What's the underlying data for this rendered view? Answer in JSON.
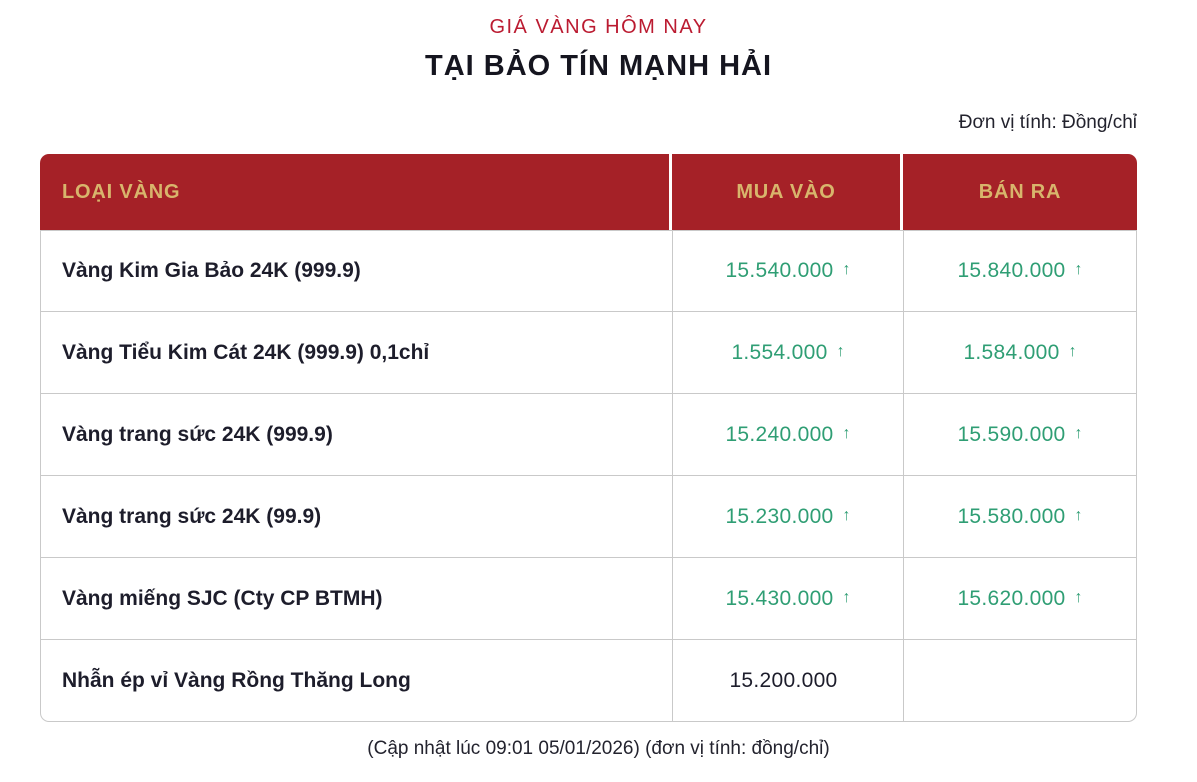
{
  "header": {
    "title": "GIÁ VÀNG HÔM NAY",
    "subtitle": "TẠI BẢO TÍN MẠNH HẢI",
    "unit_note": "Đơn vị tính: Đồng/chỉ"
  },
  "table": {
    "columns": [
      "LOẠI VÀNG",
      "MUA VÀO",
      "BÁN RA"
    ],
    "up_arrow": "↑",
    "rows": [
      {
        "type": "Vàng Kim Gia Bảo 24K (999.9)",
        "buy": "15.540.000",
        "buy_trend": "up",
        "sell": "15.840.000",
        "sell_trend": "up"
      },
      {
        "type": "Vàng Tiểu Kim Cát 24K (999.9) 0,1chỉ",
        "buy": "1.554.000",
        "buy_trend": "up",
        "sell": "1.584.000",
        "sell_trend": "up"
      },
      {
        "type": "Vàng trang sức 24K (999.9)",
        "buy": "15.240.000",
        "buy_trend": "up",
        "sell": "15.590.000",
        "sell_trend": "up"
      },
      {
        "type": "Vàng trang sức 24K (99.9)",
        "buy": "15.230.000",
        "buy_trend": "up",
        "sell": "15.580.000",
        "sell_trend": "up"
      },
      {
        "type": "Vàng miếng SJC (Cty CP BTMH)",
        "buy": "15.430.000",
        "buy_trend": "up",
        "sell": "15.620.000",
        "sell_trend": "up"
      },
      {
        "type": "Nhẫn ép vỉ Vàng Rồng Thăng Long",
        "buy": "15.200.000",
        "buy_trend": "none",
        "sell": "",
        "sell_trend": "none"
      }
    ]
  },
  "footer": {
    "update_note": "(Cập nhật lúc 09:01 05/01/2026) (đơn vị tính: đồng/chỉ)"
  },
  "colors": {
    "title_red": "#bb1b31",
    "header_bg": "#a52127",
    "header_text": "#d8b56c",
    "body_text": "#1d1d2b",
    "price_up": "#2f9e74",
    "border": "#c9c9c9"
  },
  "chart_data": {
    "type": "table",
    "title": "GIÁ VÀNG HÔM NAY TẠI BẢO TÍN MẠNH HẢI",
    "unit": "Đồng/chỉ",
    "columns": [
      "LOẠI VÀNG",
      "MUA VÀO",
      "BÁN RA"
    ],
    "rows": [
      [
        "Vàng Kim Gia Bảo 24K (999.9)",
        15540000,
        15840000
      ],
      [
        "Vàng Tiểu Kim Cát 24K (999.9) 0,1chỉ",
        1554000,
        1584000
      ],
      [
        "Vàng trang sức 24K (999.9)",
        15240000,
        15590000
      ],
      [
        "Vàng trang sức 24K (99.9)",
        15230000,
        15580000
      ],
      [
        "Vàng miếng SJC (Cty CP BTMH)",
        15430000,
        15620000
      ],
      [
        "Nhẫn ép vỉ Vàng Rồng Thăng Long",
        15200000,
        null
      ]
    ],
    "trend": "all listed buy/sell prices except last row marked up (↑)",
    "updated": "09:01 05/01/2026"
  }
}
